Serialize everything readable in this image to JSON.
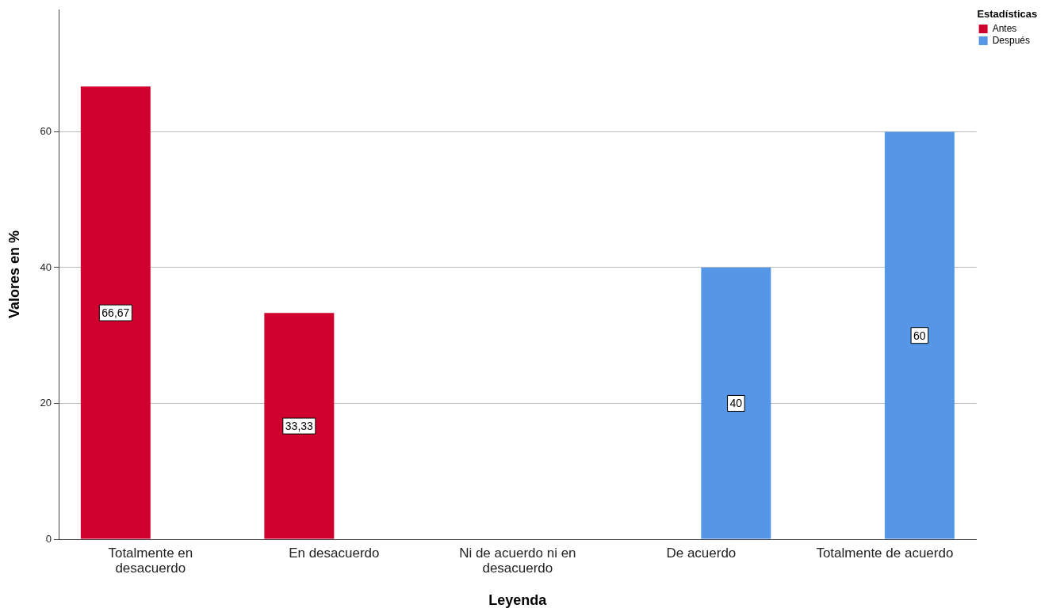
{
  "chart_data": {
    "type": "bar",
    "xlabel": "Leyenda",
    "ylabel": "Valores en %",
    "legend_title": "Estadísticas",
    "categories": [
      "Totalmente en desacuerdo",
      "En desacuerdo",
      "Ni de acuerdo ni en desacuerdo",
      "De acuerdo",
      "Totalmente de acuerdo"
    ],
    "series": [
      {
        "name": "Antes",
        "color": "#d0002f",
        "values": [
          66.67,
          33.33,
          null,
          null,
          null
        ],
        "value_labels": [
          "66,67",
          "33,33",
          null,
          null,
          null
        ]
      },
      {
        "name": "Después",
        "color": "#5596e6",
        "values": [
          null,
          null,
          null,
          40,
          60
        ],
        "value_labels": [
          null,
          null,
          null,
          "40",
          "60"
        ]
      }
    ],
    "ylim": [
      0,
      78
    ],
    "yticks": [
      0,
      20,
      40,
      60
    ],
    "grid": "y",
    "legend": "top right"
  }
}
